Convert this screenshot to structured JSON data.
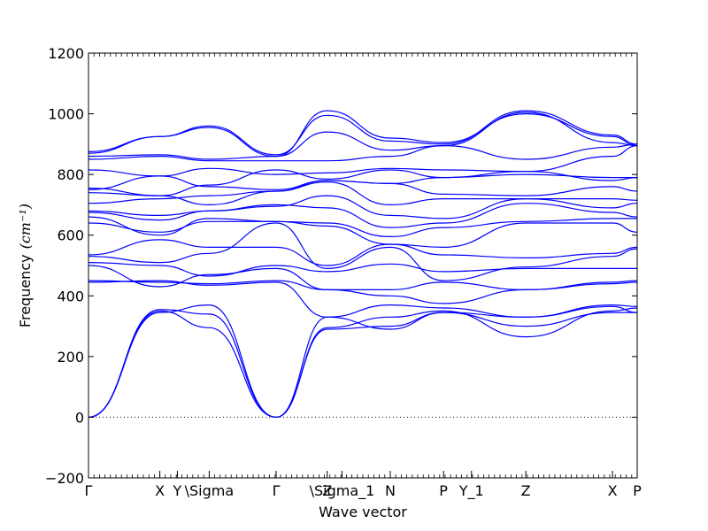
{
  "chart_data": {
    "type": "line",
    "xlabel": "Wave vector",
    "ylabel": "Frequency",
    "ylabel_unit": "(cm⁻¹)",
    "ylim": [
      -200,
      1200
    ],
    "yticks": [
      -200,
      0,
      200,
      400,
      600,
      800,
      1000,
      1200
    ],
    "zero_line": "dotted",
    "line_color": "#0000ff",
    "xticks": [
      {
        "label": "Γ",
        "x": 0
      },
      {
        "label": "X",
        "x": 0.13
      },
      {
        "label": "Y",
        "x": 0.162
      },
      {
        "label": "\\Sigma",
        "x": 0.22
      },
      {
        "label": "Γ",
        "x": 0.342
      },
      {
        "label": "Z",
        "x": 0.435
      },
      {
        "label": "\\Sigma_1",
        "x": 0.462
      },
      {
        "label": "N",
        "x": 0.55
      },
      {
        "label": "P",
        "x": 0.647
      },
      {
        "label": "Y_1",
        "x": 0.698
      },
      {
        "label": "Z",
        "x": 0.797
      },
      {
        "label": "X",
        "x": 0.955
      },
      {
        "label": "P",
        "x": 1.0
      }
    ],
    "band_anchor_x": [
      0,
      0.13,
      0.22,
      0.342,
      0.435,
      0.55,
      0.647,
      0.797,
      0.955,
      1.0
    ],
    "series": [
      {
        "values": [
          0,
          350,
          295,
          0,
          290,
          300,
          345,
          330,
          365,
          345
        ]
      },
      {
        "values": [
          0,
          355,
          340,
          0,
          295,
          330,
          350,
          265,
          350,
          360
        ]
      },
      {
        "values": [
          0,
          345,
          370,
          0,
          330,
          290,
          345,
          300,
          345,
          345
        ]
      },
      {
        "values": [
          445,
          450,
          435,
          445,
          330,
          370,
          360,
          330,
          370,
          365
        ]
      },
      {
        "values": [
          450,
          445,
          440,
          450,
          420,
          400,
          375,
          420,
          440,
          445
        ]
      },
      {
        "values": [
          500,
          430,
          470,
          490,
          420,
          420,
          445,
          420,
          445,
          450
        ]
      },
      {
        "values": [
          510,
          500,
          465,
          500,
          480,
          505,
          480,
          490,
          490,
          490
        ]
      },
      {
        "values": [
          530,
          510,
          540,
          640,
          490,
          560,
          450,
          495,
          530,
          555
        ]
      },
      {
        "values": [
          535,
          585,
          560,
          560,
          500,
          570,
          535,
          525,
          540,
          560
        ]
      },
      {
        "values": [
          640,
          610,
          645,
          645,
          630,
          570,
          560,
          640,
          640,
          610
        ]
      },
      {
        "values": [
          660,
          600,
          655,
          645,
          640,
          595,
          625,
          645,
          655,
          655
        ]
      },
      {
        "values": [
          675,
          650,
          680,
          700,
          690,
          625,
          640,
          705,
          675,
          660
        ]
      },
      {
        "values": [
          680,
          665,
          680,
          695,
          730,
          665,
          655,
          720,
          690,
          705
        ]
      },
      {
        "values": [
          705,
          720,
          730,
          745,
          775,
          700,
          720,
          720,
          720,
          715
        ]
      },
      {
        "values": [
          740,
          730,
          700,
          745,
          780,
          770,
          735,
          730,
          760,
          745
        ]
      },
      {
        "values": [
          750,
          795,
          760,
          750,
          780,
          770,
          790,
          800,
          790,
          790
        ]
      },
      {
        "values": [
          755,
          730,
          765,
          815,
          785,
          815,
          790,
          810,
          780,
          790
        ]
      },
      {
        "values": [
          815,
          795,
          820,
          800,
          805,
          820,
          815,
          810,
          860,
          895
        ]
      },
      {
        "values": [
          850,
          860,
          845,
          845,
          845,
          860,
          895,
          850,
          890,
          900
        ]
      },
      {
        "values": [
          860,
          865,
          850,
          860,
          1010,
          920,
          905,
          1000,
          925,
          895
        ]
      },
      {
        "values": [
          870,
          925,
          960,
          865,
          995,
          910,
          900,
          1010,
          930,
          900
        ]
      },
      {
        "values": [
          875,
          925,
          955,
          860,
          940,
          880,
          895,
          1005,
          905,
          895
        ]
      }
    ]
  }
}
